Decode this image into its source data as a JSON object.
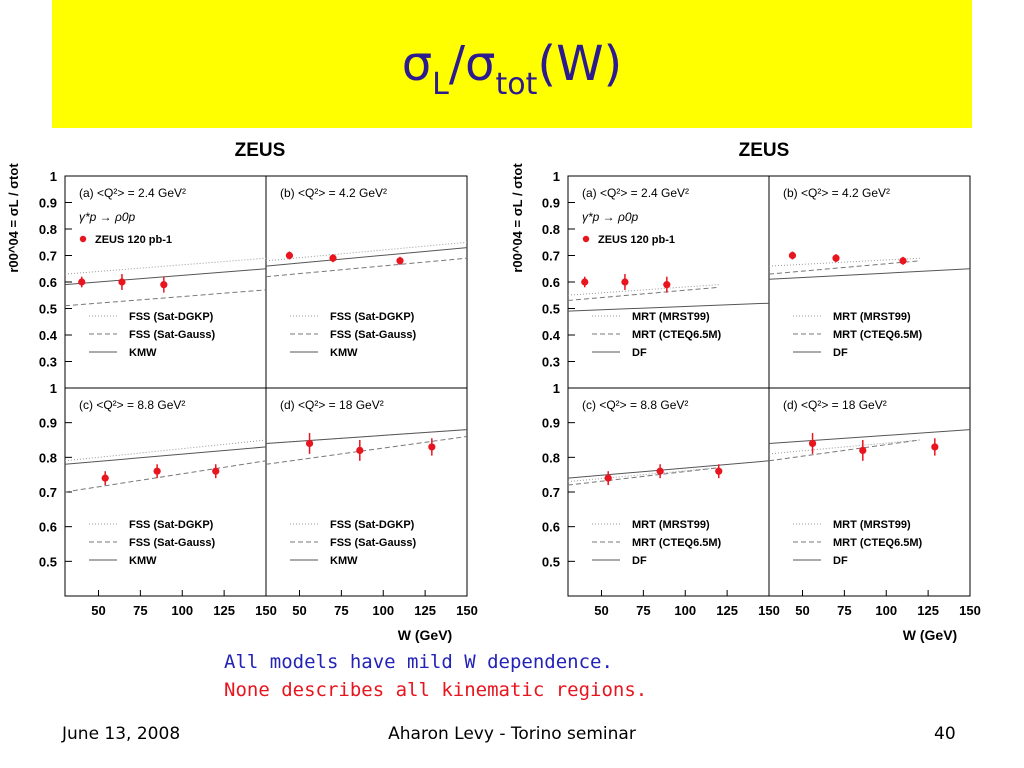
{
  "slide": {
    "title_main": "σ",
    "title_sub_l": "L",
    "title_slash": "/σ",
    "title_sub_tot": "tot",
    "title_w": "(W)",
    "note1": "All models have mild W dependence.",
    "note2": "None describes all kinematic regions.",
    "footer_date": "June 13, 2008",
    "footer_center": "Aharon Levy - Torino seminar",
    "footer_page": "40"
  },
  "colors": {
    "title_band": "#ffff00",
    "title_text": "#2b1b8f",
    "note1": "#2323b8",
    "note2": "#e8141e",
    "data_points": "#e8141e"
  },
  "chart_data": [
    {
      "type": "line",
      "header": "ZEUS",
      "ylabel": "r00^04 = σL / σtot",
      "xlabel": "W (GeV)",
      "xticks": [
        50,
        75,
        100,
        125,
        150
      ],
      "xlim": [
        30,
        150
      ],
      "reaction": "γ*p → ρ0p",
      "data_legend": "ZEUS 120 pb-1",
      "panels": [
        {
          "label": "(a)  <Q²> = 2.4 GeV²",
          "ylim": [
            0.2,
            1.0
          ],
          "yticks": [
            "0.3",
            "0.4",
            "0.5",
            "0.6",
            "0.7",
            "0.8",
            "0.9",
            "1"
          ],
          "points": [
            {
              "x": 40,
              "y": 0.6,
              "err": 0.02
            },
            {
              "x": 64,
              "y": 0.6,
              "err": 0.03
            },
            {
              "x": 89,
              "y": 0.59,
              "err": 0.03
            }
          ],
          "models": [
            {
              "name": "FSS (Sat-DGKP)",
              "style": "dotted",
              "x": [
                30,
                150
              ],
              "y": [
                0.63,
                0.69
              ]
            },
            {
              "name": "FSS (Sat-Gauss)",
              "style": "dashed",
              "x": [
                30,
                150
              ],
              "y": [
                0.51,
                0.57
              ]
            },
            {
              "name": "KMW",
              "style": "solid",
              "x": [
                30,
                150
              ],
              "y": [
                0.59,
                0.65
              ]
            }
          ]
        },
        {
          "label": "(b)  <Q²> = 4.2 GeV²",
          "ylim": [
            0.2,
            1.0
          ],
          "yticks": [
            "0.3",
            "0.4",
            "0.5",
            "0.6",
            "0.7",
            "0.8",
            "0.9",
            "1"
          ],
          "points": [
            {
              "x": 44,
              "y": 0.7,
              "err": 0.015
            },
            {
              "x": 70,
              "y": 0.69,
              "err": 0.015
            },
            {
              "x": 110,
              "y": 0.68,
              "err": 0.015
            }
          ],
          "models": [
            {
              "name": "FSS (Sat-DGKP)",
              "style": "dotted",
              "x": [
                30,
                150
              ],
              "y": [
                0.68,
                0.75
              ]
            },
            {
              "name": "FSS (Sat-Gauss)",
              "style": "dashed",
              "x": [
                30,
                150
              ],
              "y": [
                0.62,
                0.69
              ]
            },
            {
              "name": "KMW",
              "style": "solid",
              "x": [
                30,
                150
              ],
              "y": [
                0.66,
                0.73
              ]
            }
          ]
        },
        {
          "label": "(c)  <Q²> = 8.8 GeV²",
          "ylim": [
            0.4,
            1.0
          ],
          "yticks": [
            "0.5",
            "0.6",
            "0.7",
            "0.8",
            "0.9",
            "1"
          ],
          "points": [
            {
              "x": 54,
              "y": 0.74,
              "err": 0.02
            },
            {
              "x": 85,
              "y": 0.76,
              "err": 0.02
            },
            {
              "x": 120,
              "y": 0.76,
              "err": 0.02
            }
          ],
          "models": [
            {
              "name": "FSS (Sat-DGKP)",
              "style": "dotted",
              "x": [
                30,
                150
              ],
              "y": [
                0.79,
                0.85
              ]
            },
            {
              "name": "FSS (Sat-Gauss)",
              "style": "dashed",
              "x": [
                30,
                150
              ],
              "y": [
                0.7,
                0.79
              ]
            },
            {
              "name": "KMW",
              "style": "solid",
              "x": [
                30,
                150
              ],
              "y": [
                0.78,
                0.83
              ]
            }
          ]
        },
        {
          "label": "(d)  <Q²> = 18 GeV²",
          "ylim": [
            0.4,
            1.0
          ],
          "yticks": [
            "0.5",
            "0.6",
            "0.7",
            "0.8",
            "0.9",
            "1"
          ],
          "points": [
            {
              "x": 56,
              "y": 0.84,
              "err": 0.03
            },
            {
              "x": 86,
              "y": 0.82,
              "err": 0.03
            },
            {
              "x": 129,
              "y": 0.83,
              "err": 0.025
            }
          ],
          "models": [
            {
              "name": "FSS (Sat-DGKP)",
              "style": "dotted",
              "x": [
                30,
                150
              ],
              "y": [
                0.84,
                0.88
              ]
            },
            {
              "name": "FSS (Sat-Gauss)",
              "style": "dashed",
              "x": [
                30,
                150
              ],
              "y": [
                0.78,
                0.86
              ]
            },
            {
              "name": "KMW",
              "style": "solid",
              "x": [
                30,
                150
              ],
              "y": [
                0.84,
                0.88
              ]
            }
          ]
        }
      ]
    },
    {
      "type": "line",
      "header": "ZEUS",
      "ylabel": "r00^04 = σL / σtot",
      "xlabel": "W (GeV)",
      "xticks": [
        50,
        75,
        100,
        125,
        150
      ],
      "xlim": [
        30,
        150
      ],
      "reaction": "γ*p → ρ0p",
      "data_legend": "ZEUS 120 pb-1",
      "panels": [
        {
          "label": "(a)  <Q²> = 2.4 GeV²",
          "ylim": [
            0.2,
            1.0
          ],
          "yticks": [
            "0.3",
            "0.4",
            "0.5",
            "0.6",
            "0.7",
            "0.8",
            "0.9",
            "1"
          ],
          "points": [
            {
              "x": 40,
              "y": 0.6,
              "err": 0.02
            },
            {
              "x": 64,
              "y": 0.6,
              "err": 0.03
            },
            {
              "x": 89,
              "y": 0.59,
              "err": 0.03
            }
          ],
          "models": [
            {
              "name": "MRT (MRST99)",
              "style": "dotted",
              "x": [
                30,
                120
              ],
              "y": [
                0.55,
                0.59
              ]
            },
            {
              "name": "MRT (CTEQ6.5M)",
              "style": "dashed",
              "x": [
                30,
                120
              ],
              "y": [
                0.53,
                0.58
              ]
            },
            {
              "name": "DF",
              "style": "solid",
              "x": [
                30,
                150
              ],
              "y": [
                0.49,
                0.52
              ]
            }
          ]
        },
        {
          "label": "(b)  <Q²> = 4.2 GeV²",
          "ylim": [
            0.2,
            1.0
          ],
          "yticks": [
            "0.3",
            "0.4",
            "0.5",
            "0.6",
            "0.7",
            "0.8",
            "0.9",
            "1"
          ],
          "points": [
            {
              "x": 44,
              "y": 0.7,
              "err": 0.015
            },
            {
              "x": 70,
              "y": 0.69,
              "err": 0.015
            },
            {
              "x": 110,
              "y": 0.68,
              "err": 0.015
            }
          ],
          "models": [
            {
              "name": "MRT (MRST99)",
              "style": "dotted",
              "x": [
                30,
                120
              ],
              "y": [
                0.66,
                0.69
              ]
            },
            {
              "name": "MRT (CTEQ6.5M)",
              "style": "dashed",
              "x": [
                30,
                120
              ],
              "y": [
                0.63,
                0.68
              ]
            },
            {
              "name": "DF",
              "style": "solid",
              "x": [
                30,
                150
              ],
              "y": [
                0.61,
                0.65
              ]
            }
          ]
        },
        {
          "label": "(c)   <Q²> = 8.8 GeV²",
          "ylim": [
            0.4,
            1.0
          ],
          "yticks": [
            "0.5",
            "0.6",
            "0.7",
            "0.8",
            "0.9",
            "1"
          ],
          "points": [
            {
              "x": 54,
              "y": 0.74,
              "err": 0.02
            },
            {
              "x": 85,
              "y": 0.76,
              "err": 0.02
            },
            {
              "x": 120,
              "y": 0.76,
              "err": 0.02
            }
          ],
          "models": [
            {
              "name": "MRT (MRST99)",
              "style": "dotted",
              "x": [
                30,
                120
              ],
              "y": [
                0.73,
                0.77
              ]
            },
            {
              "name": "MRT (CTEQ6.5M)",
              "style": "dashed",
              "x": [
                30,
                120
              ],
              "y": [
                0.72,
                0.77
              ]
            },
            {
              "name": "DF",
              "style": "solid",
              "x": [
                30,
                150
              ],
              "y": [
                0.74,
                0.79
              ]
            }
          ]
        },
        {
          "label": "(d)  <Q²> = 18 GeV²",
          "ylim": [
            0.4,
            1.0
          ],
          "yticks": [
            "0.5",
            "0.6",
            "0.7",
            "0.8",
            "0.9",
            "1"
          ],
          "points": [
            {
              "x": 56,
              "y": 0.84,
              "err": 0.03
            },
            {
              "x": 86,
              "y": 0.82,
              "err": 0.03
            },
            {
              "x": 129,
              "y": 0.83,
              "err": 0.025
            }
          ],
          "models": [
            {
              "name": "MRT (MRST99)",
              "style": "dotted",
              "x": [
                30,
                120
              ],
              "y": [
                0.81,
                0.85
              ]
            },
            {
              "name": "MRT (CTEQ6.5M)",
              "style": "dashed",
              "x": [
                30,
                120
              ],
              "y": [
                0.79,
                0.85
              ]
            },
            {
              "name": "DF",
              "style": "solid",
              "x": [
                30,
                150
              ],
              "y": [
                0.84,
                0.88
              ]
            }
          ]
        }
      ]
    }
  ]
}
